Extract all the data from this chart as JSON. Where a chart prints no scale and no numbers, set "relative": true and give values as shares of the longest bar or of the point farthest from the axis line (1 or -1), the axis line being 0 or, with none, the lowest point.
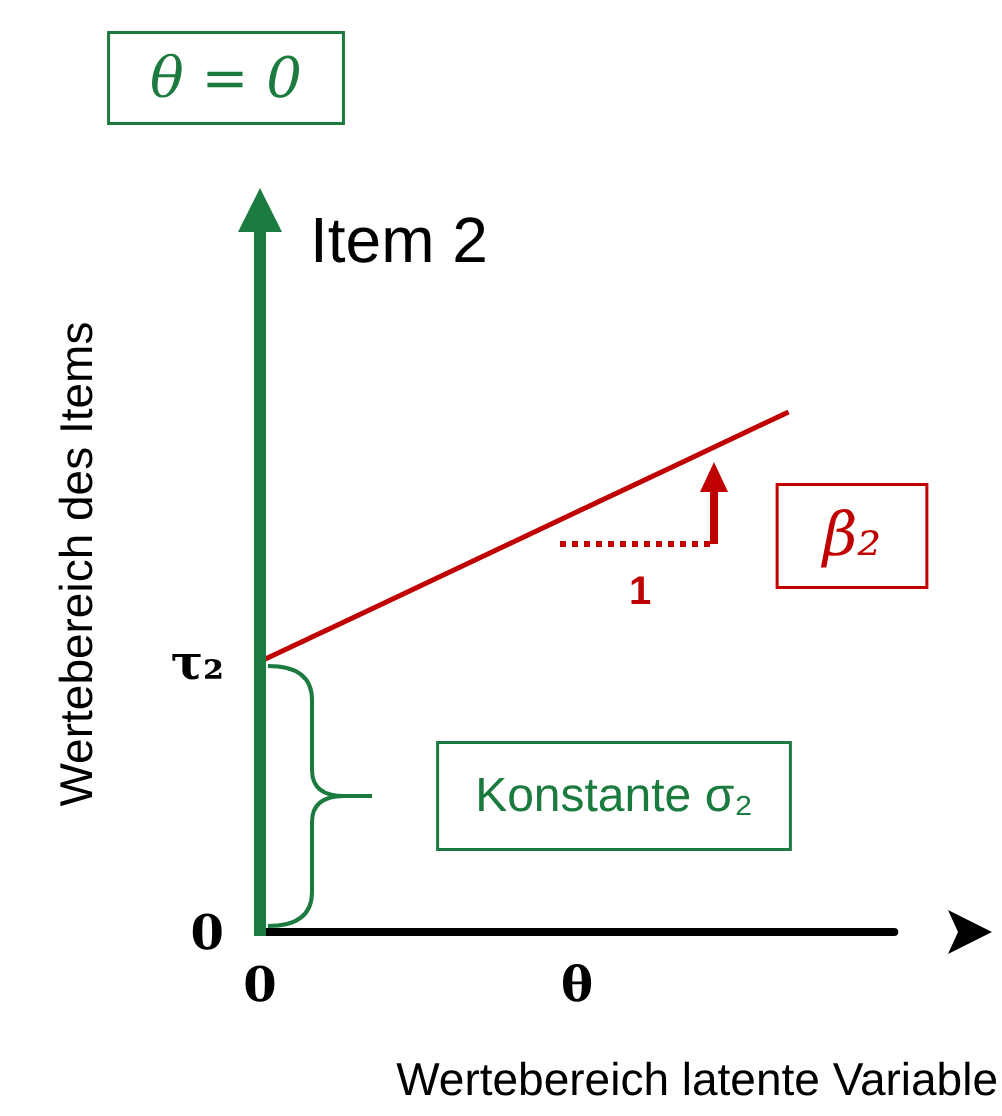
{
  "chart_data": {
    "type": "line",
    "relative": true,
    "xlabel": "Wertebereich latente Variable",
    "ylabel": "Wertebereich des Items",
    "categories": [
      "0",
      null,
      null,
      "θ",
      null,
      null,
      null
    ],
    "series": [
      {
        "color": "#c00000",
        "values": [
          0.52,
          0.616,
          0.712,
          0.808,
          0.904,
          1,
          null
        ]
      }
    ],
    "annotations": [
      "θ = 0",
      "Item 2",
      "β₂",
      "1",
      "Konstante σ₂",
      "0",
      {
        "text": "τ₂",
        "x": "0",
        "y": 0.52
      }
    ]
  }
}
